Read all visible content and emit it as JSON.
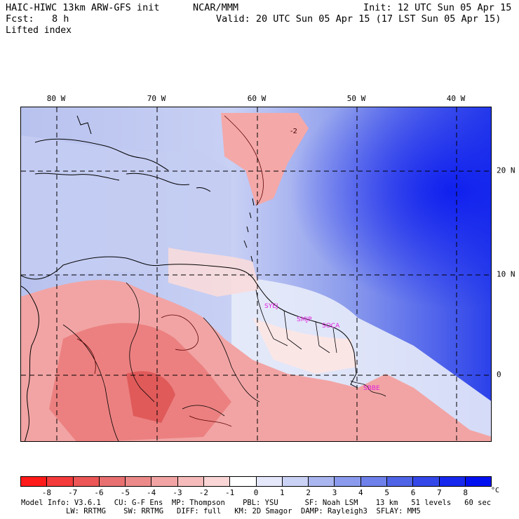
{
  "header": {
    "model": "HAIC-HIWC 13km ARW-GFS init",
    "org": "NCAR/MMM",
    "fcst_label": "Fcst:",
    "fcst_value": "8 h",
    "init": "Init: 12 UTC Sun 05 Apr 15",
    "valid": "Valid: 20 UTC Sun 05 Apr 15 (17 LST Sun 05 Apr 15)",
    "field": "Lifted index"
  },
  "map": {
    "lon_labels": [
      "80 W",
      "70 W",
      "60 W",
      "50 W",
      "40 W"
    ],
    "lat_labels": [
      "20 N",
      "10 N",
      "0"
    ],
    "stations": [
      "SYEJ",
      "SMJP",
      "SOCA",
      "SBBE"
    ],
    "contour_labels": [
      "-2"
    ]
  },
  "colorbar": {
    "ticks": [
      "-8",
      "-7",
      "-6",
      "-5",
      "-4",
      "-3",
      "-2",
      "-1",
      "0",
      "1",
      "2",
      "3",
      "4",
      "5",
      "6",
      "7",
      "8"
    ],
    "unit": "°C",
    "colors": [
      "#ff1a1a",
      "#f43a3a",
      "#ec5656",
      "#e87070",
      "#ec8a8a",
      "#f2a4a4",
      "#f6bcbc",
      "#fad6d6",
      "#ffffff",
      "#e4e8fa",
      "#cad2f6",
      "#aab6f0",
      "#8a9aec",
      "#6e80ea",
      "#5064e8",
      "#3448ea",
      "#1628ee",
      "#0010f0"
    ]
  },
  "footer": {
    "line1": "Model Info: V3.6.1   CU: G-F Ens  MP: Thompson    PBL: YSU      SF: Noah LSM    13 km   51 levels   60 sec",
    "line2": "LW: RRTMG    SW: RRTMG   DIFF: full   KM: 2D Smagor  DAMP: Rayleigh3  SFLAY: MM5"
  }
}
